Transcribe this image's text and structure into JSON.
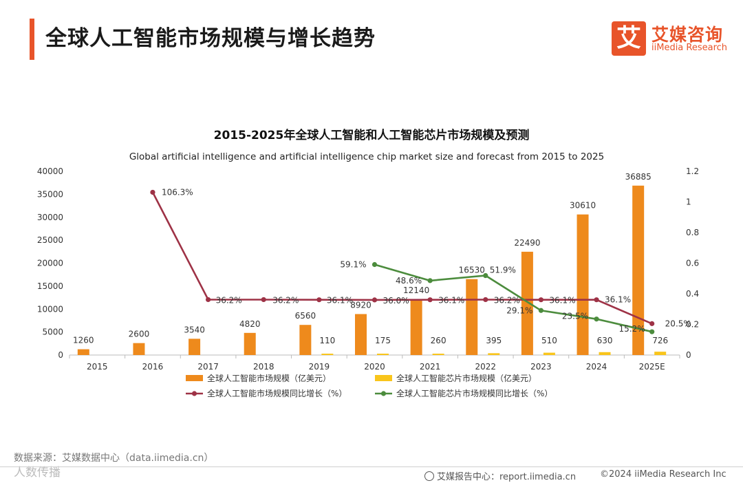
{
  "header": {
    "title": "全球人工智能市场规模与增长趋势",
    "logo_mark": "艾",
    "logo_cn": "艾媒咨询",
    "logo_en": "iiMedia Research"
  },
  "footer": {
    "source": "数据来源：艾媒数据中心（data.iimedia.cn）",
    "watermark": "人数传播",
    "report": "艾媒报告中心：report.iimedia.cn",
    "copyright": "©2024  iiMedia Research  Inc"
  },
  "colors": {
    "accent": "#e8542a",
    "ai_bar": "#ee8a1c",
    "chip_bar": "#f9c51b",
    "ai_growth": "#9e3246",
    "chip_growth": "#4c8c3d"
  },
  "chart_data": {
    "type": "bar",
    "title": "2015-2025年全球人工智能和人工智能芯片市场规模及预测",
    "subtitle": "Global artificial intelligence and artificial intelligence chip market size and forecast from 2015 to 2025",
    "categories": [
      "2015",
      "2016",
      "2017",
      "2018",
      "2019",
      "2020",
      "2021",
      "2022",
      "2023",
      "2024",
      "2025E"
    ],
    "ylim": [
      0,
      40000
    ],
    "y_ticks": [
      0,
      5000,
      10000,
      15000,
      20000,
      25000,
      30000,
      35000,
      40000
    ],
    "y2lim": [
      0,
      1.2
    ],
    "y2_ticks": [
      0,
      0.2,
      0.4,
      0.6,
      0.8,
      1,
      1.2
    ],
    "legend_position": "bottom",
    "grid": false,
    "series": [
      {
        "name": "全球人工智能市场规模（亿美元）",
        "kind": "bar",
        "axis": "left",
        "values": [
          1260,
          2600,
          3540,
          4820,
          6560,
          8920,
          12140,
          16530,
          22490,
          30610,
          36885
        ],
        "labels": [
          "1260",
          "2600",
          "3540",
          "4820",
          "6560",
          "8920",
          "12140",
          "16530",
          "22490",
          "30610",
          "36885"
        ]
      },
      {
        "name": "全球人工智能芯片市场规模（亿美元）",
        "kind": "bar",
        "axis": "left",
        "values": [
          null,
          null,
          null,
          null,
          110,
          175,
          260,
          395,
          510,
          630,
          726
        ],
        "labels": [
          "",
          "",
          "",
          "",
          "110",
          "175",
          "260",
          "395",
          "510",
          "630",
          "726"
        ]
      },
      {
        "name": "全球人工智能市场规模同比增长（%）",
        "kind": "line",
        "axis": "right",
        "values": [
          null,
          1.063,
          0.362,
          0.362,
          0.361,
          0.36,
          0.361,
          0.362,
          0.361,
          0.361,
          0.205
        ],
        "labels": [
          "",
          "106.3%",
          "36.2%",
          "36.2%",
          "36.1%",
          "36.0%",
          "36.1%",
          "36.2%",
          "36.1%",
          "36.1%",
          "20.5%"
        ]
      },
      {
        "name": "全球人工智能芯片市场规模同比增长（%）",
        "kind": "line",
        "axis": "right",
        "values": [
          null,
          null,
          null,
          null,
          null,
          0.591,
          0.486,
          0.519,
          0.291,
          0.235,
          0.152
        ],
        "labels": [
          "",
          "",
          "",
          "",
          "",
          "59.1%",
          "48.6%",
          "51.9%",
          "29.1%",
          "23.5%",
          "15.2%"
        ]
      }
    ]
  }
}
